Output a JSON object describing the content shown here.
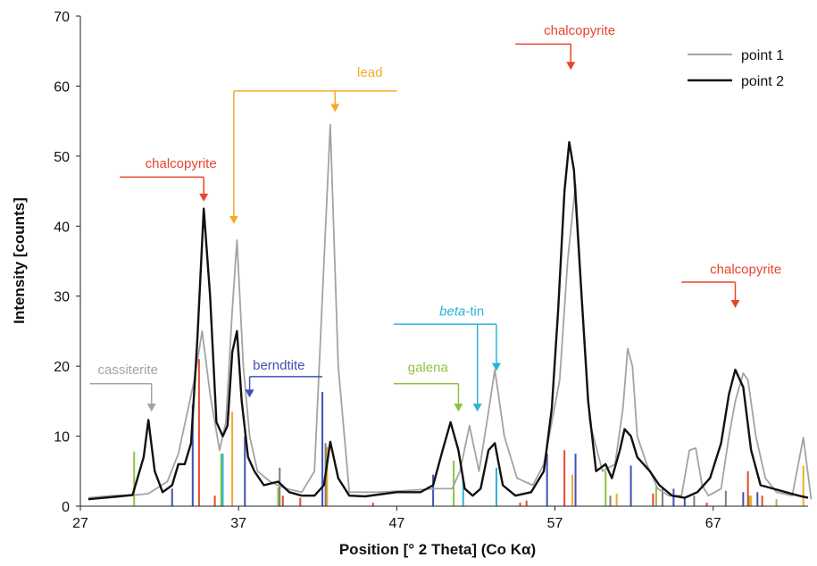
{
  "chart_data": {
    "type": "line",
    "xlabel": "Position [° 2 Theta] (Co Kα)",
    "ylabel": "Intensity [counts]",
    "xlim": [
      27,
      73
    ],
    "ylim": [
      0,
      70
    ],
    "xticks": [
      "27",
      "37",
      "47",
      "57",
      "67"
    ],
    "yticks": [
      "0",
      "10",
      "20",
      "30",
      "40",
      "50",
      "60",
      "70"
    ],
    "legend_position": "top-right",
    "grid": false,
    "series": [
      {
        "name": "point 1",
        "color": "#a3a3a3",
        "x": [
          27.5,
          29,
          30.5,
          31.3,
          32.5,
          33.2,
          34.2,
          34.7,
          35.2,
          35.8,
          36.2,
          36.6,
          36.9,
          37.3,
          37.7,
          38.2,
          39,
          40,
          41,
          41.8,
          42.3,
          42.8,
          43.3,
          44,
          46,
          48,
          49.5,
          50.5,
          51,
          51.6,
          52.2,
          52.7,
          53.2,
          53.8,
          54.6,
          55.6,
          56.3,
          56.8,
          57.3,
          57.8,
          58.3,
          58.7,
          59.2,
          60,
          60.8,
          61.3,
          61.6,
          61.9,
          62.2,
          62.8,
          63.5,
          64.2,
          65,
          65.5,
          65.9,
          66.3,
          66.7,
          67.5,
          68,
          68.4,
          68.9,
          69.2,
          69.7,
          70.3,
          71,
          72,
          72.7,
          73.2
        ],
        "values": [
          1.2,
          1.5,
          1.6,
          1.8,
          3.5,
          7.5,
          18,
          25,
          16,
          8,
          12,
          28,
          38,
          20,
          10,
          5,
          3.5,
          2.5,
          2,
          5,
          30,
          54.5,
          20,
          2,
          2,
          2.3,
          2.5,
          2.5,
          5,
          11.5,
          5,
          12,
          19.5,
          10,
          4,
          3,
          6,
          12,
          18,
          35,
          46,
          30,
          12,
          5,
          6,
          14,
          22.5,
          20,
          10,
          6,
          2.5,
          1.5,
          1.5,
          8,
          8.3,
          3,
          1.5,
          2.5,
          10,
          15,
          19,
          18,
          10,
          4,
          2,
          1.5,
          9.8,
          1
        ]
      },
      {
        "name": "point 2",
        "color": "#111111",
        "x": [
          27.5,
          29,
          30.3,
          31,
          31.3,
          31.7,
          32.2,
          32.8,
          33.2,
          33.6,
          34,
          34.4,
          34.8,
          35.2,
          35.6,
          36,
          36.3,
          36.6,
          36.9,
          37.2,
          37.6,
          38,
          38.6,
          39.5,
          40.2,
          41,
          41.8,
          42.4,
          42.8,
          43.3,
          44,
          45,
          47,
          48.5,
          49.3,
          49.9,
          50.4,
          50.9,
          51.3,
          51.8,
          52.3,
          52.8,
          53.2,
          53.7,
          54.5,
          55.5,
          56.3,
          56.8,
          57.2,
          57.6,
          57.9,
          58.2,
          58.6,
          59.1,
          59.6,
          60.2,
          60.6,
          61.1,
          61.4,
          61.8,
          62.2,
          62.6,
          63,
          63.6,
          64.4,
          65.2,
          66,
          66.8,
          67.5,
          68,
          68.4,
          68.9,
          69.4,
          70,
          70.8,
          71.6,
          72.4,
          73
        ],
        "values": [
          1,
          1.3,
          1.6,
          7,
          12.3,
          5,
          2,
          3,
          6,
          6,
          9,
          24,
          42.5,
          30,
          12,
          10,
          11.5,
          22,
          25,
          15,
          7,
          5,
          3,
          3.5,
          2,
          1.5,
          1.5,
          3,
          9.2,
          4,
          1.5,
          1.4,
          2,
          2,
          3,
          8,
          12,
          8,
          2.5,
          1.5,
          2.5,
          8,
          9,
          3,
          1.5,
          2,
          5,
          14,
          28,
          45,
          52,
          48,
          33,
          15,
          5,
          6,
          4,
          8,
          11,
          10,
          7,
          6,
          5,
          3,
          1.5,
          1.2,
          2,
          4,
          9,
          16,
          19.5,
          17,
          8,
          3,
          2.5,
          2,
          1.5,
          1.2
        ]
      }
    ],
    "reference_groups": [
      {
        "color": "#8cc43e",
        "x": [
          30.4,
          35.9,
          39.5,
          50.6,
          60.2,
          63.4,
          69.3,
          71.0
        ],
        "values": [
          7.8,
          7.5,
          2.7,
          6.5,
          5.0,
          2.8,
          1.5,
          1.0
        ]
      },
      {
        "color": "#3f51b5",
        "x": [
          32.8,
          34.1,
          37.4,
          42.3,
          49.3,
          56.5,
          58.3,
          61.8,
          64.5,
          65.2,
          68.9,
          69.8
        ],
        "values": [
          2.5,
          14.5,
          10.0,
          16.3,
          4.5,
          7.5,
          7.5,
          5.8,
          2.5,
          1.3,
          2.0,
          2.0
        ]
      },
      {
        "color": "#e8452c",
        "x": [
          34.5,
          35.5,
          39.8,
          40.9,
          45.5,
          54.8,
          55.2,
          57.6,
          63.2,
          66.6,
          69.2,
          70.1
        ],
        "values": [
          21.0,
          1.5,
          1.5,
          1.2,
          0.5,
          0.5,
          0.8,
          8.0,
          1.8,
          0.5,
          5.0,
          1.5
        ]
      },
      {
        "color": "#f4a92c",
        "x": [
          36.6,
          42.6,
          58.1,
          60.9,
          69.4,
          72.7
        ],
        "values": [
          13.5,
          8.5,
          4.5,
          1.8,
          1.5,
          5.8
        ]
      },
      {
        "color": "#2bb4d8",
        "x": [
          36.0,
          51.2,
          53.3
        ],
        "values": [
          7.5,
          3.8,
          5.5
        ]
      },
      {
        "color": "#7f7f7f",
        "x": [
          39.6,
          42.5,
          60.5,
          63.8,
          65.8,
          67.8
        ],
        "values": [
          5.5,
          9.0,
          1.5,
          2.5,
          1.5,
          2.2
        ]
      }
    ],
    "annotations": [
      {
        "text": "lead",
        "color": "#f4a92c",
        "italic_prefix": "",
        "label_x": 44.5,
        "label_y": 61.3,
        "bracket": {
          "y": 59.3,
          "x_left": 36.7,
          "x_right": 47
        },
        "arrows": [
          {
            "x": 36.7,
            "y_tip": 40.3
          },
          {
            "x": 43.1,
            "y_tip": 56.3
          }
        ]
      },
      {
        "text": "chalcopyrite",
        "color": "#e8452c",
        "italic_prefix": "",
        "label_x": 31.1,
        "label_y": 48.3,
        "bracket": {
          "y": 47,
          "x_left": 29.5,
          "x_right": 34.8
        },
        "arrows": [
          {
            "x": 34.8,
            "y_tip": 43.5
          }
        ]
      },
      {
        "text": "chalcopyrite",
        "color": "#e8452c",
        "italic_prefix": "",
        "label_x": 56.3,
        "label_y": 67.3,
        "bracket": {
          "y": 66,
          "x_left": 54.5,
          "x_right": 58.0
        },
        "arrows": [
          {
            "x": 58.0,
            "y_tip": 62.3
          }
        ]
      },
      {
        "text": "chalcopyrite",
        "color": "#e8452c",
        "italic_prefix": "",
        "label_x": 66.8,
        "label_y": 33.2,
        "bracket": {
          "y": 32,
          "x_left": 65,
          "x_right": 68.4
        },
        "arrows": [
          {
            "x": 68.4,
            "y_tip": 28.3
          }
        ]
      },
      {
        "text": "cassiterite",
        "color": "#a3a3a3",
        "italic_prefix": "",
        "label_x": 28.1,
        "label_y": 18.9,
        "bracket": {
          "y": 17.5,
          "x_left": 27.6,
          "x_right": 31.5
        },
        "arrows": [
          {
            "x": 31.5,
            "y_tip": 13.5
          }
        ]
      },
      {
        "text": "berndtite",
        "color": "#3f51b5",
        "italic_prefix": "",
        "label_x": 37.9,
        "label_y": 19.5,
        "bracket": {
          "y": 18.5,
          "x_left": 37.7,
          "x_right": 42.3
        },
        "arrows": [
          {
            "x": 37.7,
            "y_tip": 15.5
          }
        ]
      },
      {
        "text": "galena",
        "color": "#8cc43e",
        "italic_prefix": "",
        "label_x": 47.7,
        "label_y": 19.2,
        "bracket": {
          "y": 17.5,
          "x_left": 46.8,
          "x_right": 50.9
        },
        "arrows": [
          {
            "x": 50.9,
            "y_tip": 13.5
          }
        ]
      },
      {
        "text": "-tin",
        "color": "#2bb4d8",
        "italic_prefix": "beta",
        "label_x": 49.7,
        "label_y": 27.2,
        "bracket": {
          "y": 26,
          "x_left": 46.8,
          "x_right": 53.3
        },
        "arrows": [
          {
            "x": 52.1,
            "y_tip": 13.5
          },
          {
            "x": 53.3,
            "y_tip": 19.3
          }
        ]
      }
    ]
  }
}
